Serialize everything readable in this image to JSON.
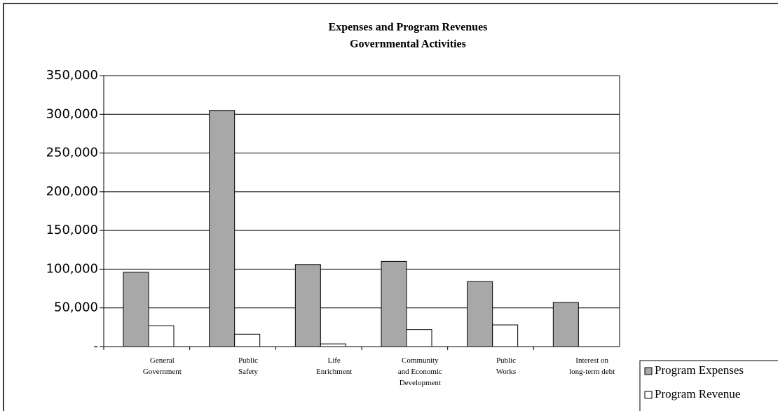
{
  "chart_data": {
    "type": "bar",
    "title": "Expenses and Program Revenues",
    "subtitle": "Governmental Activities",
    "categories": [
      "General\nGovernment",
      "Public\nSafety",
      "Life\nEnrichment",
      "Community\nand Economic\nDevelopment",
      "Public\nWorks",
      "Interest on\nlong-term debt"
    ],
    "series": [
      {
        "name": "Program Expenses",
        "color": "#a8a8a8",
        "values": [
          96000,
          305000,
          106000,
          110000,
          84000,
          57000
        ]
      },
      {
        "name": "Program Revenue",
        "color": "#ffffff",
        "values": [
          27000,
          16000,
          3500,
          22000,
          28000,
          0
        ]
      }
    ],
    "ylim": [
      0,
      350000
    ],
    "yticks": [
      {
        "value": 0,
        "label": "-"
      },
      {
        "value": 50000,
        "label": "50,000"
      },
      {
        "value": 100000,
        "label": "100,000"
      },
      {
        "value": 150000,
        "label": "150,000"
      },
      {
        "value": 200000,
        "label": "200,000"
      },
      {
        "value": 250000,
        "label": "250,000"
      },
      {
        "value": 300000,
        "label": "300,000"
      },
      {
        "value": 350000,
        "label": "350,000"
      }
    ],
    "grid": true,
    "legend": "bottom-right"
  }
}
